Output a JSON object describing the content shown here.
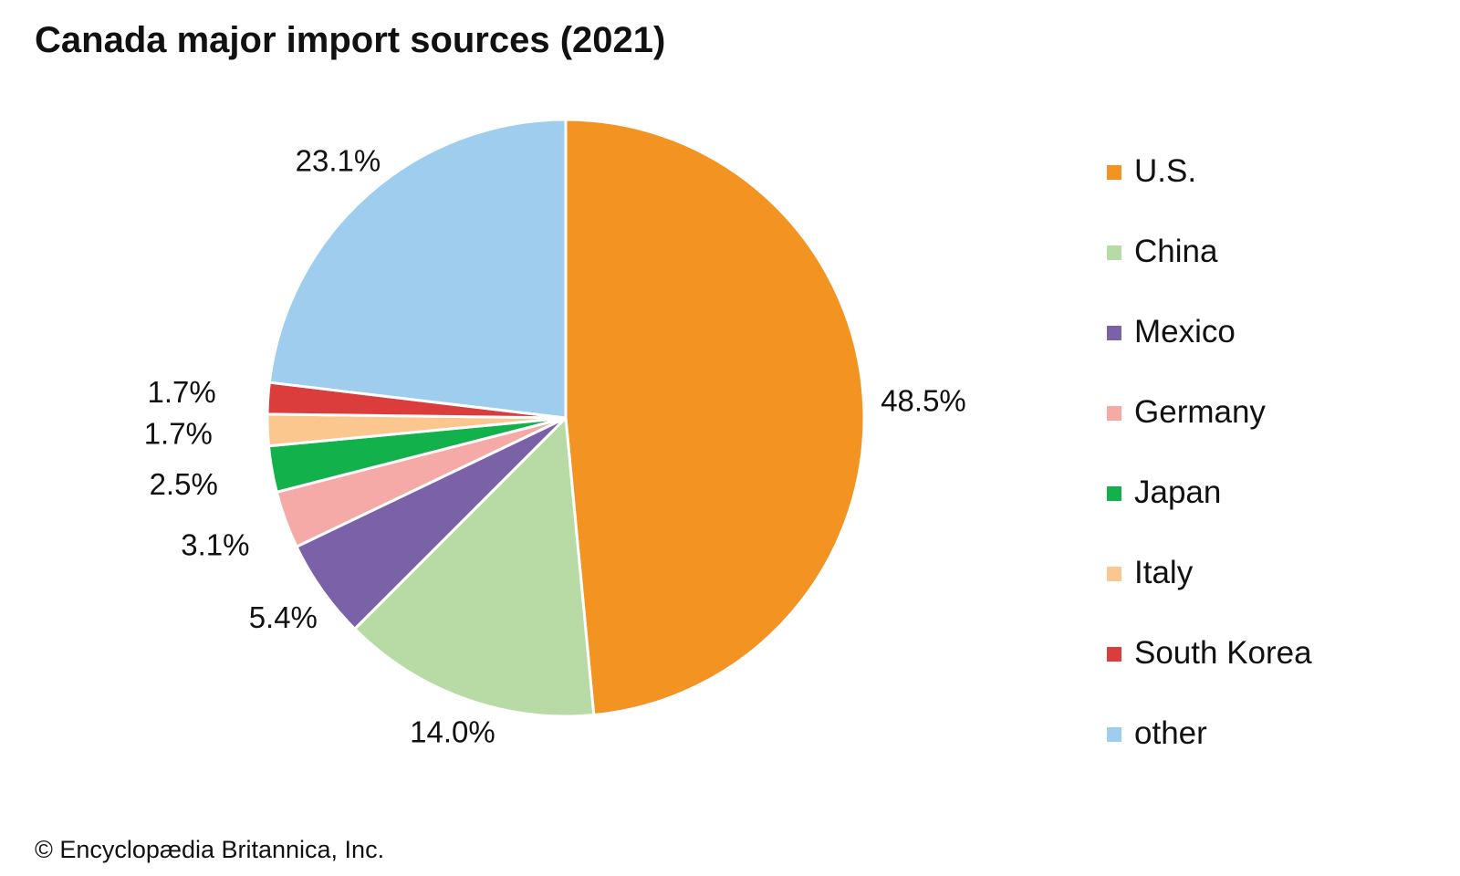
{
  "chart_data": {
    "type": "pie",
    "title": "Canada major import sources (2021)",
    "slices": [
      {
        "name": "U.S.",
        "value": 48.5,
        "label": "48.5%",
        "color": "#f39322"
      },
      {
        "name": "China",
        "value": 14.0,
        "label": "14.0%",
        "color": "#b8dba5"
      },
      {
        "name": "Mexico",
        "value": 5.4,
        "label": "5.4%",
        "color": "#7b62a8"
      },
      {
        "name": "Germany",
        "value": 3.1,
        "label": "3.1%",
        "color": "#f5aaa7"
      },
      {
        "name": "Japan",
        "value": 2.5,
        "label": "2.5%",
        "color": "#12b14b"
      },
      {
        "name": "Italy",
        "value": 1.7,
        "label": "1.7%",
        "color": "#fcc78f"
      },
      {
        "name": "South Korea",
        "value": 1.7,
        "label": "1.7%",
        "color": "#db3d3d"
      },
      {
        "name": "other",
        "value": 23.1,
        "label": "23.1%",
        "color": "#9fcdee"
      }
    ],
    "legend_position": "right"
  },
  "credit": "© Encyclopædia Britannica, Inc."
}
